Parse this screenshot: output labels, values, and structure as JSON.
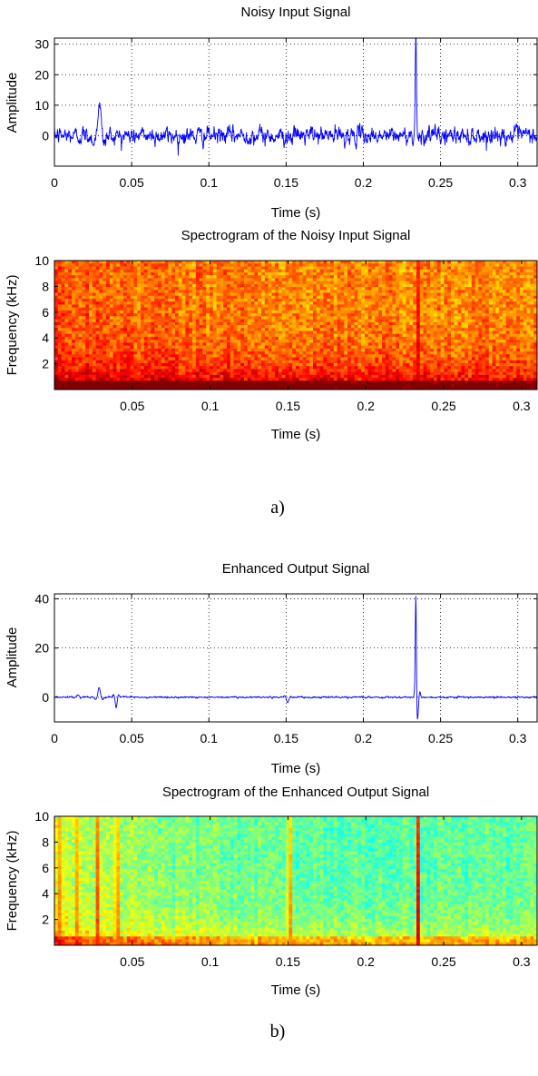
{
  "figure": {
    "panel_labels": [
      "a)",
      "b)"
    ]
  },
  "colors": {
    "signal_line": "#0000ff",
    "axis": "#000000",
    "grid": "#000000",
    "colormap": "jet"
  },
  "chart_data": [
    {
      "type": "line",
      "title": "Noisy Input Signal",
      "xlabel": "Time (s)",
      "ylabel": "Amplitude",
      "xlim": [
        0,
        0.3125
      ],
      "ylim": [
        -10,
        32
      ],
      "xticks": [
        0,
        0.05,
        0.1,
        0.15,
        0.2,
        0.25,
        0.3
      ],
      "xtick_labels": [
        "0",
        "0.05",
        "0.1",
        "0.15",
        "0.2",
        "0.25",
        "0.3"
      ],
      "yticks": [
        0,
        10,
        20,
        30
      ],
      "ytick_labels": [
        "0",
        "10",
        "20",
        "30"
      ],
      "grid": true,
      "series": [
        {
          "color": "#0000ff",
          "noise_std": 2.6,
          "noise_range": [
            -9,
            6
          ],
          "events": [
            {
              "t": 0.029,
              "peak": 10,
              "width": 0.003
            },
            {
              "t": 0.234,
              "peak": 32,
              "width": 0.0006
            }
          ]
        }
      ]
    },
    {
      "type": "heatmap",
      "title": "Spectrogram of the Noisy Input Signal",
      "xlabel": "Time (s)",
      "ylabel": "Frequency (kHz)",
      "xlim": [
        0,
        0.31
      ],
      "ylim": [
        0,
        10
      ],
      "xticks": [
        0.05,
        0.1,
        0.15,
        0.2,
        0.25,
        0.3
      ],
      "xtick_labels": [
        "0.05",
        "0.1",
        "0.15",
        "0.2",
        "0.25",
        "0.3"
      ],
      "yticks": [
        2,
        4,
        6,
        8,
        10
      ],
      "ytick_labels": [
        "2",
        "4",
        "6",
        "8",
        "10"
      ],
      "colormap": "jet",
      "bins": {
        "time": 140,
        "freq": 44
      },
      "energy_profile": {
        "base": 0.74,
        "low_freq_boost": 0.22,
        "early_time_boost": 0.08,
        "noise": 0.07
      },
      "events": [
        {
          "t": 0.234,
          "level": 0.97,
          "width": 0.0015
        }
      ]
    },
    {
      "type": "line",
      "title": "Enhanced Output Signal",
      "xlabel": "Time (s)",
      "ylabel": "Amplitude",
      "xlim": [
        0,
        0.3125
      ],
      "ylim": [
        -10,
        42
      ],
      "xticks": [
        0,
        0.05,
        0.1,
        0.15,
        0.2,
        0.25,
        0.3
      ],
      "xtick_labels": [
        "0",
        "0.05",
        "0.1",
        "0.15",
        "0.2",
        "0.25",
        "0.3"
      ],
      "yticks": [
        0,
        20,
        40
      ],
      "ytick_labels": [
        "0",
        "20",
        "40"
      ],
      "grid": true,
      "series": [
        {
          "color": "#0000ff",
          "noise_std": 0.3,
          "events": [
            {
              "t": 0.015,
              "peak": 1,
              "width": 0.002
            },
            {
              "t": 0.029,
              "peak": 4,
              "width": 0.002
            },
            {
              "t": 0.04,
              "peak": -4,
              "width": 0.0015
            },
            {
              "t": 0.151,
              "peak": -2,
              "width": 0.002
            },
            {
              "t": 0.234,
              "peak": 42,
              "width": 0.0005
            },
            {
              "t": 0.235,
              "peak": -9,
              "width": 0.0015
            }
          ]
        }
      ]
    },
    {
      "type": "heatmap",
      "title": "Spectrogram of the Enhanced Output Signal",
      "xlabel": "Time (s)",
      "ylabel": "Frequency (kHz)",
      "xlim": [
        0,
        0.31
      ],
      "ylim": [
        0,
        10
      ],
      "xticks": [
        0.05,
        0.1,
        0.15,
        0.2,
        0.25,
        0.3
      ],
      "xtick_labels": [
        "0.05",
        "0.1",
        "0.15",
        "0.2",
        "0.25",
        "0.3"
      ],
      "yticks": [
        2,
        4,
        6,
        8,
        10
      ],
      "ytick_labels": [
        "2",
        "4",
        "6",
        "8",
        "10"
      ],
      "colormap": "jet",
      "bins": {
        "time": 140,
        "freq": 44
      },
      "energy_profile": {
        "base": 0.46,
        "low_freq_boost": 0.14,
        "early_time_boost": 0.18,
        "noise": 0.06
      },
      "events": [
        {
          "t": 0.003,
          "level": 0.78,
          "width": 0.002
        },
        {
          "t": 0.015,
          "level": 0.82,
          "width": 0.002
        },
        {
          "t": 0.028,
          "level": 0.84,
          "width": 0.002
        },
        {
          "t": 0.04,
          "level": 0.86,
          "width": 0.0025
        },
        {
          "t": 0.151,
          "level": 0.78,
          "width": 0.003
        },
        {
          "t": 0.234,
          "level": 0.95,
          "width": 0.0018
        }
      ]
    }
  ]
}
